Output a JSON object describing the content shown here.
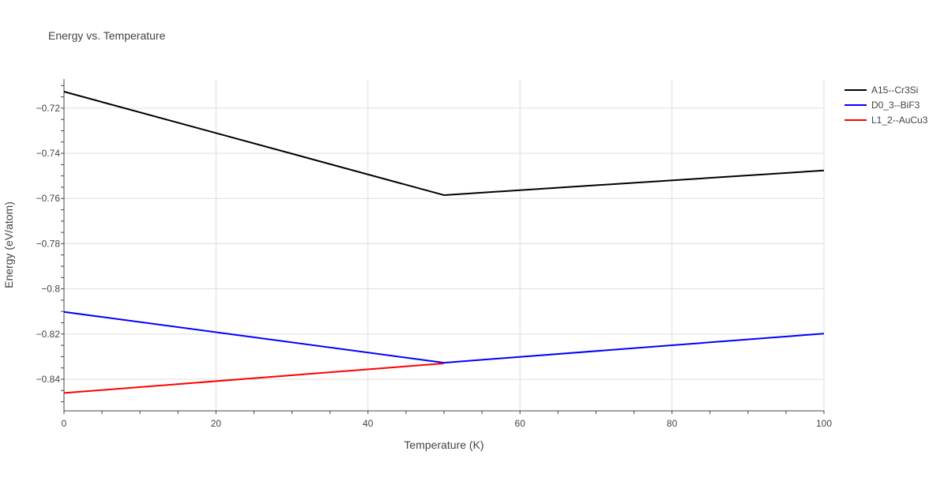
{
  "chart_data": {
    "type": "line",
    "title": "Energy vs. Temperature",
    "xlabel": "Temperature (K)",
    "ylabel": "Energy (eV/atom)",
    "xlim": [
      0,
      100
    ],
    "ylim": [
      -0.854,
      -0.7071
    ],
    "x_ticks": [
      0,
      20,
      40,
      60,
      80,
      100
    ],
    "x_tick_labels": [
      "0",
      "20",
      "40",
      "60",
      "80",
      "100"
    ],
    "y_ticks": [
      -0.72,
      -0.74,
      -0.76,
      -0.78,
      -0.8,
      -0.82,
      -0.84
    ],
    "y_tick_labels": [
      "−0.72",
      "−0.74",
      "−0.76",
      "−0.78",
      "−0.8",
      "−0.82",
      "−0.84"
    ],
    "grid": true,
    "legend_position": "top-right, outside plot",
    "series": [
      {
        "name": "A15--Cr3Si",
        "color": "#000000",
        "x": [
          0,
          50,
          100
        ],
        "y": [
          -0.7127,
          -0.7585,
          -0.7476
        ]
      },
      {
        "name": "D0_3--BiF3",
        "color": "#0000ff",
        "x": [
          0,
          50,
          100
        ],
        "y": [
          -0.8102,
          -0.8327,
          -0.8198
        ]
      },
      {
        "name": "L1_2--AuCu3",
        "color": "#ff0000",
        "x": [
          0,
          50
        ],
        "y": [
          -0.8461,
          -0.833
        ]
      }
    ]
  },
  "colors": {
    "text": "#444444",
    "grid": "#dddddd",
    "axis": "#444444",
    "background": "#ffffff"
  }
}
